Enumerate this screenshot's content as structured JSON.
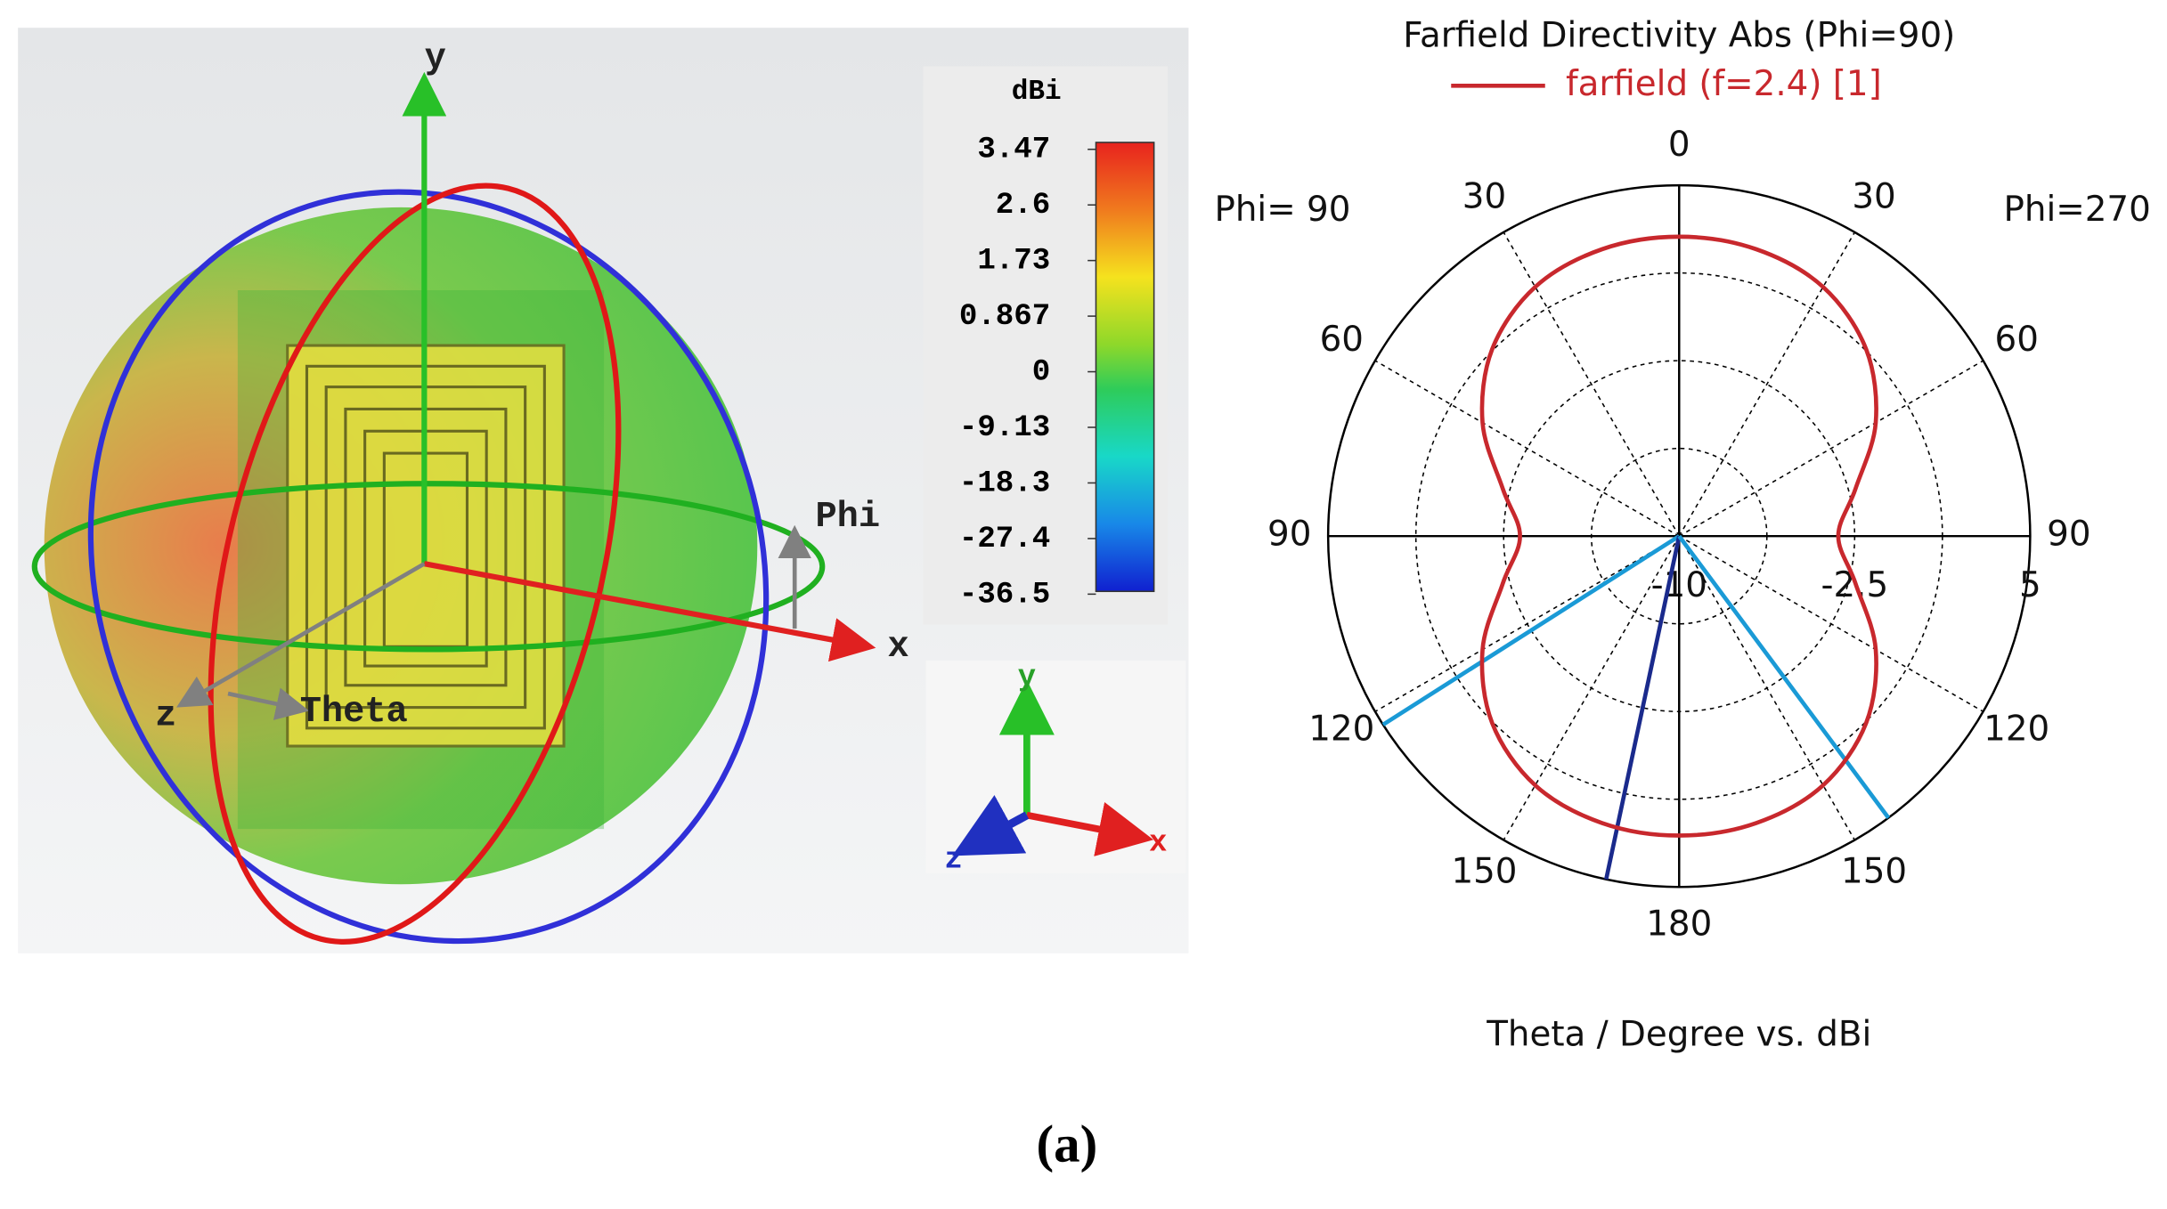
{
  "figure": {
    "caption": "(a)"
  },
  "chart_data": [
    {
      "type": "farfield3d",
      "colorbar": {
        "title": "dBi",
        "ticks": [
          3.47,
          2.6,
          1.73,
          0.867,
          0,
          -9.13,
          -18.3,
          -27.4,
          -36.5
        ]
      },
      "axis_labels": {
        "x": "x",
        "y": "y",
        "z": "z",
        "phi": "Phi",
        "theta": "Theta"
      },
      "triad_labels": {
        "x": "x",
        "y": "y",
        "z": "z"
      }
    },
    {
      "type": "polar",
      "title": "Farfield Directivity Abs (Phi=90)",
      "series": [
        {
          "name": "farfield (f=2.4) [1]",
          "color": "#c8282d",
          "x": [
            0,
            15,
            30,
            45,
            60,
            75,
            90,
            105,
            120,
            135,
            150,
            165,
            180,
            195,
            210,
            225,
            240,
            255,
            270,
            285,
            300,
            315,
            330,
            345
          ],
          "values": [
            2.8,
            2.7,
            2.3,
            1.3,
            -0.3,
            -2.2,
            -3.2,
            -2.2,
            -0.3,
            1.3,
            2.3,
            2.7,
            2.8,
            2.7,
            2.3,
            1.3,
            -0.3,
            -2.2,
            -3.2,
            -2.2,
            -0.3,
            1.3,
            2.3,
            2.7
          ]
        }
      ],
      "direction": "counterclockwise",
      "rlim": [
        -10,
        5
      ],
      "rticks": [
        -10,
        -2.5,
        5
      ],
      "thetaticks": [
        0,
        30,
        60,
        90,
        120,
        150,
        180,
        {
          "value": 210,
          "label": "150"
        },
        {
          "value": 240,
          "label": "120"
        },
        {
          "value": 270,
          "label": "90"
        },
        {
          "value": 300,
          "label": "60"
        },
        {
          "value": 330,
          "label": "30"
        }
      ],
      "side_labels": [
        "Phi= 90",
        "Phi=270"
      ],
      "markers": [
        {
          "angle": 122.5,
          "color": "#1a9ad6"
        },
        {
          "angle": 168,
          "color": "#1a2a8c"
        },
        {
          "angle": 216.6,
          "color": "#1a9ad6"
        }
      ],
      "xlabel": "Theta / Degree vs. dBi"
    }
  ]
}
